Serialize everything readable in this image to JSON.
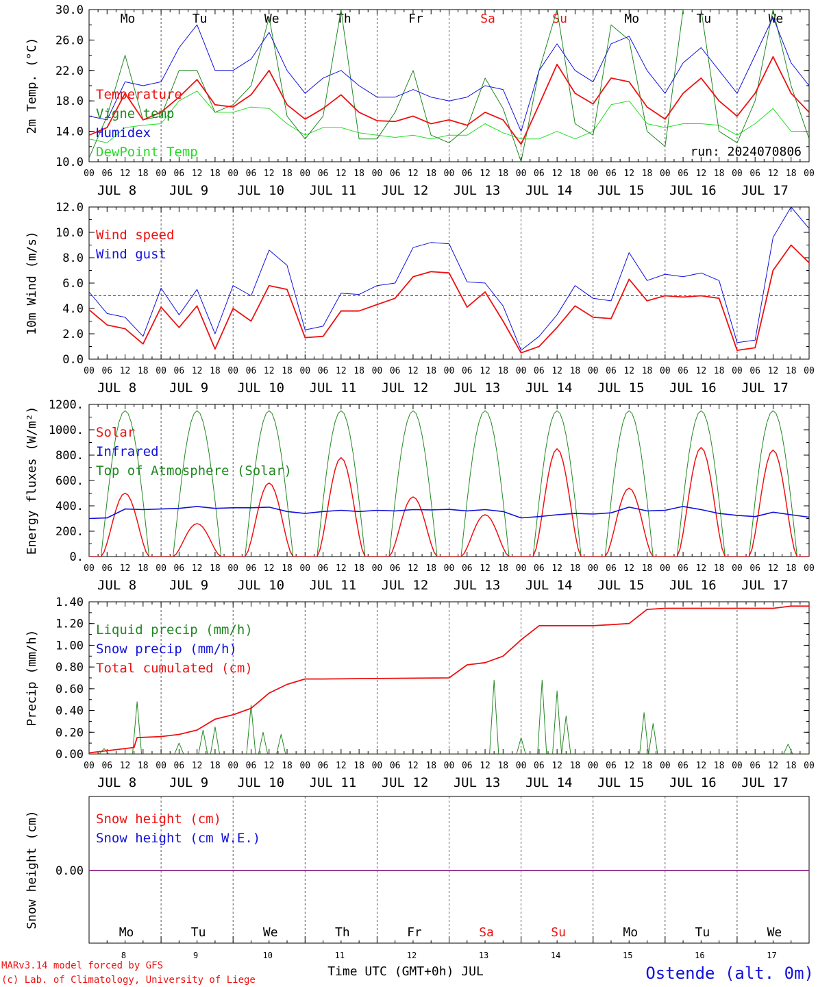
{
  "colors": {
    "red": "#ee1111",
    "darkgreen": "#228822",
    "lightgreen": "#22dd22",
    "blue": "#1111dd",
    "purple": "#882288",
    "black": "#000000"
  },
  "time": {
    "hour_labels": [
      "00",
      "06",
      "12",
      "18"
    ],
    "days": [
      "JUL 8",
      "JUL 9",
      "JUL 10",
      "JUL 11",
      "JUL 12",
      "JUL 13",
      "JUL 14",
      "JUL 15",
      "JUL 16",
      "JUL 17"
    ],
    "weekdays": [
      "Mo",
      "Tu",
      "We",
      "Th",
      "Fr",
      "Sa",
      "Su",
      "Mo",
      "Tu",
      "We"
    ],
    "weekday_colors": [
      "#000000",
      "#000000",
      "#000000",
      "#000000",
      "#000000",
      "#ee1111",
      "#ee1111",
      "#000000",
      "#000000",
      "#000000"
    ],
    "day_numbers": [
      "8",
      "9",
      "10",
      "11",
      "12",
      "13",
      "14",
      "15",
      "16",
      "17"
    ]
  },
  "footer": {
    "model": "MARv3.14 model forced by GFS",
    "lab": "(c) Lab. of Climatology, University of Liege",
    "axis_title": "Time UTC (GMT+0h) JUL",
    "station": "Ostende (alt. 0m)"
  },
  "chart_data": [
    {
      "type": "line",
      "ylabel": "2m Temp. (°C)",
      "ylim": [
        10,
        30
      ],
      "yticks": [
        "10.0",
        "14.0",
        "18.0",
        "22.0",
        "26.0",
        "30.0"
      ],
      "ytick_values": [
        10,
        14,
        18,
        22,
        26,
        30
      ],
      "run_label": "run: 2024070806",
      "x_hours": [
        0,
        6,
        12,
        18,
        24,
        30,
        36,
        42,
        48,
        54,
        60,
        66,
        72,
        78,
        84,
        90,
        96,
        102,
        108,
        114,
        120,
        126,
        132,
        138,
        144,
        150,
        156,
        162,
        168,
        174,
        180,
        186,
        192,
        198,
        204,
        210,
        216,
        222,
        228,
        234,
        240
      ],
      "series": [
        {
          "name": "Temperature",
          "color": "#ee1111",
          "width": 1.8,
          "values": [
            13.5,
            14.5,
            19.0,
            15.5,
            16.5,
            18.5,
            20.8,
            17.5,
            17.2,
            18.8,
            22.0,
            17.5,
            15.6,
            17.0,
            18.8,
            16.5,
            15.4,
            15.3,
            16.0,
            15.0,
            15.5,
            14.8,
            16.5,
            15.5,
            12.3,
            17.5,
            22.8,
            19.0,
            17.6,
            21.0,
            20.5,
            17.2,
            15.6,
            19.0,
            21.0,
            18.0,
            16.0,
            19.0,
            23.8,
            19.0,
            16.5
          ]
        },
        {
          "name": "Vigne temp",
          "color": "#228822",
          "width": 1.0,
          "values": [
            10.5,
            16.0,
            24.0,
            15.5,
            16.0,
            22.0,
            22.0,
            16.5,
            17.5,
            20.0,
            29.0,
            16.0,
            13.0,
            16.0,
            30.0,
            13.0,
            13.0,
            16.5,
            22.0,
            13.5,
            12.5,
            14.5,
            21.0,
            17.0,
            10.0,
            22.0,
            30.0,
            15.0,
            13.5,
            28.0,
            26.0,
            14.0,
            12.0,
            30.0,
            30.0,
            14.0,
            12.5,
            18.0,
            30.0,
            20.0,
            13.0
          ]
        },
        {
          "name": "Humidex",
          "color": "#1111dd",
          "width": 1.0,
          "values": [
            16.0,
            15.5,
            20.5,
            20.0,
            20.5,
            25.0,
            28.0,
            22.0,
            22.0,
            23.5,
            27.0,
            22.0,
            19.0,
            21.0,
            22.0,
            20.0,
            18.5,
            18.5,
            19.5,
            18.5,
            18.0,
            18.5,
            20.0,
            19.5,
            14.0,
            22.0,
            25.5,
            22.0,
            20.5,
            25.5,
            26.5,
            22.0,
            19.0,
            23.0,
            25.0,
            22.0,
            19.0,
            24.0,
            29.0,
            23.0,
            20.0
          ]
        },
        {
          "name": "DewPoint Temp",
          "color": "#22dd22",
          "width": 1.0,
          "values": [
            13.0,
            12.5,
            14.5,
            14.8,
            15.0,
            18.0,
            19.3,
            16.5,
            16.5,
            17.2,
            17.0,
            15.0,
            13.5,
            14.5,
            14.5,
            13.8,
            13.5,
            13.2,
            13.5,
            13.0,
            13.5,
            13.5,
            15.0,
            13.8,
            13.0,
            13.0,
            14.0,
            13.0,
            14.0,
            17.5,
            18.0,
            15.0,
            14.5,
            15.0,
            15.0,
            14.8,
            13.5,
            15.0,
            17.0,
            14.0,
            14.0
          ]
        }
      ],
      "legend": [
        "Temperature",
        "Vigne temp",
        "Humidex",
        "DewPoint Temp"
      ]
    },
    {
      "type": "line",
      "ylabel": "10m Wind (m/s)",
      "ylim": [
        0,
        12
      ],
      "yticks": [
        "0.0",
        "2.0",
        "4.0",
        "6.0",
        "8.0",
        "10.0",
        "12.0"
      ],
      "ytick_values": [
        0,
        2,
        4,
        6,
        8,
        10,
        12
      ],
      "reference_line": 5,
      "x_hours": [
        0,
        6,
        12,
        18,
        24,
        30,
        36,
        42,
        48,
        54,
        60,
        66,
        72,
        78,
        84,
        90,
        96,
        102,
        108,
        114,
        120,
        126,
        132,
        138,
        144,
        150,
        156,
        162,
        168,
        174,
        180,
        186,
        192,
        198,
        204,
        210,
        216,
        222,
        228,
        234,
        240
      ],
      "series": [
        {
          "name": "Wind speed",
          "color": "#ee1111",
          "width": 1.8,
          "values": [
            3.9,
            2.7,
            2.4,
            1.2,
            4.1,
            2.5,
            4.2,
            0.8,
            4.0,
            3.0,
            5.8,
            5.5,
            1.7,
            1.8,
            3.8,
            3.8,
            4.3,
            4.8,
            6.5,
            6.9,
            6.8,
            4.1,
            5.3,
            3.0,
            0.5,
            1.0,
            2.5,
            4.2,
            3.3,
            3.2,
            6.3,
            4.6,
            5.0,
            4.9,
            5.0,
            4.8,
            0.7,
            0.9,
            7.0,
            9.0,
            7.6
          ]
        },
        {
          "name": "Wind gust",
          "color": "#1111dd",
          "width": 1.0,
          "values": [
            5.3,
            3.6,
            3.3,
            1.8,
            5.6,
            3.5,
            5.5,
            2.0,
            5.8,
            5.0,
            8.6,
            7.4,
            2.3,
            2.6,
            5.2,
            5.1,
            5.8,
            6.0,
            8.8,
            9.2,
            9.1,
            6.1,
            6.0,
            4.2,
            0.7,
            1.8,
            3.5,
            5.8,
            4.8,
            4.6,
            8.4,
            6.2,
            6.7,
            6.5,
            6.8,
            6.2,
            1.3,
            1.5,
            9.6,
            12.0,
            10.3
          ]
        }
      ],
      "legend": [
        "Wind speed",
        "Wind gust"
      ]
    },
    {
      "type": "line",
      "ylabel": "Energy fluxes (W/m²)",
      "ylim": [
        0,
        1200
      ],
      "yticks": [
        "0.",
        "200.",
        "400.",
        "600.",
        "800.",
        "1000.",
        "1200."
      ],
      "ytick_values": [
        0,
        200,
        400,
        600,
        800,
        1000,
        1200
      ],
      "toa_peak": 1150,
      "solar_daily_peaks": [
        500,
        260,
        580,
        780,
        470,
        330,
        850,
        540,
        860,
        840
      ],
      "infrared_values": [
        300,
        305,
        375,
        370,
        375,
        380,
        395,
        380,
        385,
        385,
        390,
        355,
        340,
        355,
        365,
        355,
        365,
        360,
        370,
        368,
        372,
        360,
        370,
        355,
        305,
        315,
        330,
        340,
        335,
        345,
        390,
        360,
        365,
        395,
        370,
        340,
        325,
        315,
        350,
        330,
        310
      ],
      "series": [
        {
          "name": "Solar",
          "color": "#ee1111"
        },
        {
          "name": "Infrared",
          "color": "#1111dd"
        },
        {
          "name": "Top of Atmosphere (Solar)",
          "color": "#228822"
        }
      ],
      "legend": [
        "Solar",
        "Infrared",
        "Top of Atmosphere (Solar)"
      ]
    },
    {
      "type": "line",
      "ylabel": "Precip (mm/h)",
      "ylim": [
        0,
        1.4
      ],
      "yticks": [
        "0.00",
        "0.20",
        "0.40",
        "0.60",
        "0.80",
        "1.00",
        "1.20",
        "1.40"
      ],
      "ytick_values": [
        0,
        0.2,
        0.4,
        0.6,
        0.8,
        1.0,
        1.2,
        1.4
      ],
      "cumulated": {
        "x_hours": [
          0,
          12,
          15,
          16,
          24,
          30,
          36,
          42,
          48,
          54,
          60,
          66,
          72,
          78,
          120,
          126,
          132,
          138,
          144,
          150,
          156,
          162,
          168,
          180,
          186,
          192,
          228,
          234,
          240
        ],
        "values": [
          0.01,
          0.05,
          0.06,
          0.15,
          0.16,
          0.18,
          0.22,
          0.32,
          0.36,
          0.42,
          0.56,
          0.64,
          0.69,
          0.69,
          0.7,
          0.82,
          0.84,
          0.9,
          1.05,
          1.18,
          1.18,
          1.18,
          1.18,
          1.2,
          1.33,
          1.34,
          1.34,
          1.36,
          1.36
        ]
      },
      "liquid_events": [
        {
          "hour": 5,
          "value": 0.05
        },
        {
          "hour": 16,
          "value": 0.48
        },
        {
          "hour": 30,
          "value": 0.1
        },
        {
          "hour": 38,
          "value": 0.22
        },
        {
          "hour": 42,
          "value": 0.25
        },
        {
          "hour": 54,
          "value": 0.45
        },
        {
          "hour": 58,
          "value": 0.2
        },
        {
          "hour": 64,
          "value": 0.18
        },
        {
          "hour": 135,
          "value": 0.68
        },
        {
          "hour": 144,
          "value": 0.15
        },
        {
          "hour": 151,
          "value": 0.68
        },
        {
          "hour": 156,
          "value": 0.58
        },
        {
          "hour": 159,
          "value": 0.35
        },
        {
          "hour": 185,
          "value": 0.38
        },
        {
          "hour": 188,
          "value": 0.28
        },
        {
          "hour": 233,
          "value": 0.09
        }
      ],
      "series": [
        {
          "name": "Liquid precip (mm/h)",
          "color": "#228822"
        },
        {
          "name": "Snow precip (mm/h)",
          "color": "#1111dd"
        },
        {
          "name": "Total cumulated (cm)",
          "color": "#ee1111"
        }
      ],
      "legend": [
        "Liquid precip (mm/h)",
        "Snow precip (mm/h)",
        "Total cumulated (cm)"
      ]
    },
    {
      "type": "line",
      "ylabel": "Snow height (cm)",
      "yticks": [
        "0.00"
      ],
      "value": 0.0,
      "series": [
        {
          "name": "Snow height (cm)",
          "color": "#ee1111"
        },
        {
          "name": "Snow height (cm W.E.)",
          "color": "#1111dd"
        }
      ],
      "legend": [
        "Snow height (cm)",
        "Snow height (cm W.E.)"
      ]
    }
  ]
}
